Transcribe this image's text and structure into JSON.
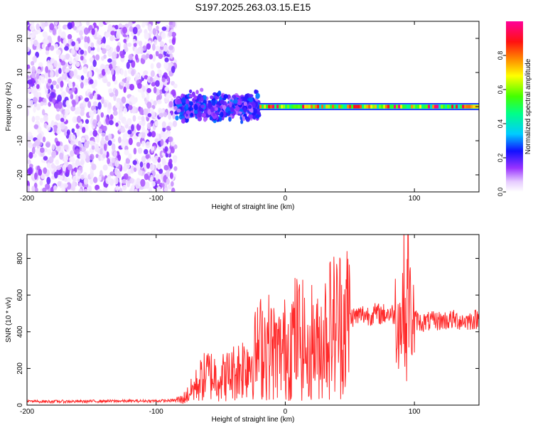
{
  "title": "S197.2025.263.03.15.E15",
  "colors": {
    "snr_line": "#ff2a2a",
    "axis": "#000000",
    "background": "#ffffff"
  },
  "chart_data": [
    {
      "type": "heatmap",
      "name": "spectrogram",
      "xlabel": "Height of straight line (km)",
      "ylabel": "Frequency (Hz)",
      "xlim": [
        -200,
        150
      ],
      "ylim": [
        -25,
        25
      ],
      "xticks": [
        -200,
        -100,
        0,
        100
      ],
      "yticks": [
        -20,
        -10,
        0,
        10,
        20
      ],
      "colorbar": {
        "label": "Normalized spectral amplitude",
        "range": [
          0,
          1
        ],
        "ticks": [
          "0.0",
          "0.2",
          "0.4",
          "0.6",
          "0.8"
        ],
        "colormap": "rainbow (white-purple-blue-cyan-green-yellow-orange-red-magenta)"
      },
      "description_regions": [
        {
          "x_range": [
            -200,
            -85
          ],
          "freq_range": [
            -25,
            25
          ],
          "amplitude_range": [
            0.02,
            0.18
          ],
          "pattern": "broadband noise"
        },
        {
          "x_range": [
            -85,
            -20
          ],
          "freq_range": [
            -6,
            5
          ],
          "amplitude_range": [
            0.1,
            0.3
          ],
          "pattern": "scattered near 0 Hz"
        },
        {
          "x_range": [
            -20,
            150
          ],
          "freq_range": [
            -1,
            1
          ],
          "amplitude_range": [
            0.4,
            1.0
          ],
          "pattern": "narrow strong line at 0 Hz"
        }
      ]
    },
    {
      "type": "line",
      "name": "snr",
      "xlabel": "Height of straight line (km)",
      "ylabel": "SNR (10 * v/v)",
      "xlim": [
        -200,
        150
      ],
      "ylim": [
        0,
        930
      ],
      "xticks": [
        -200,
        -100,
        0,
        100
      ],
      "yticks": [
        0,
        200,
        400,
        600,
        800
      ],
      "series": [
        {
          "name": "SNR",
          "x": [
            -200,
            -180,
            -160,
            -140,
            -120,
            -100,
            -90,
            -80,
            -75,
            -70,
            -65,
            -60,
            -55,
            -50,
            -45,
            -40,
            -35,
            -30,
            -25,
            -20,
            -15,
            -10,
            -5,
            0,
            5,
            10,
            15,
            18,
            20,
            25,
            30,
            35,
            40,
            45,
            50,
            55,
            60,
            65,
            70,
            75,
            80,
            85,
            88,
            90,
            92,
            94,
            95,
            96,
            98,
            100,
            105,
            110,
            120,
            130,
            140,
            150
          ],
          "values": [
            20,
            20,
            20,
            22,
            22,
            23,
            24,
            30,
            60,
            100,
            140,
            170,
            160,
            150,
            160,
            180,
            200,
            230,
            260,
            310,
            340,
            300,
            280,
            310,
            360,
            380,
            340,
            200,
            360,
            310,
            390,
            430,
            450,
            470,
            480,
            485,
            495,
            490,
            500,
            495,
            500,
            495,
            480,
            430,
            620,
            300,
            900,
            530,
            480,
            470,
            450,
            455,
            460,
            465,
            460,
            470
          ]
        }
      ]
    }
  ]
}
